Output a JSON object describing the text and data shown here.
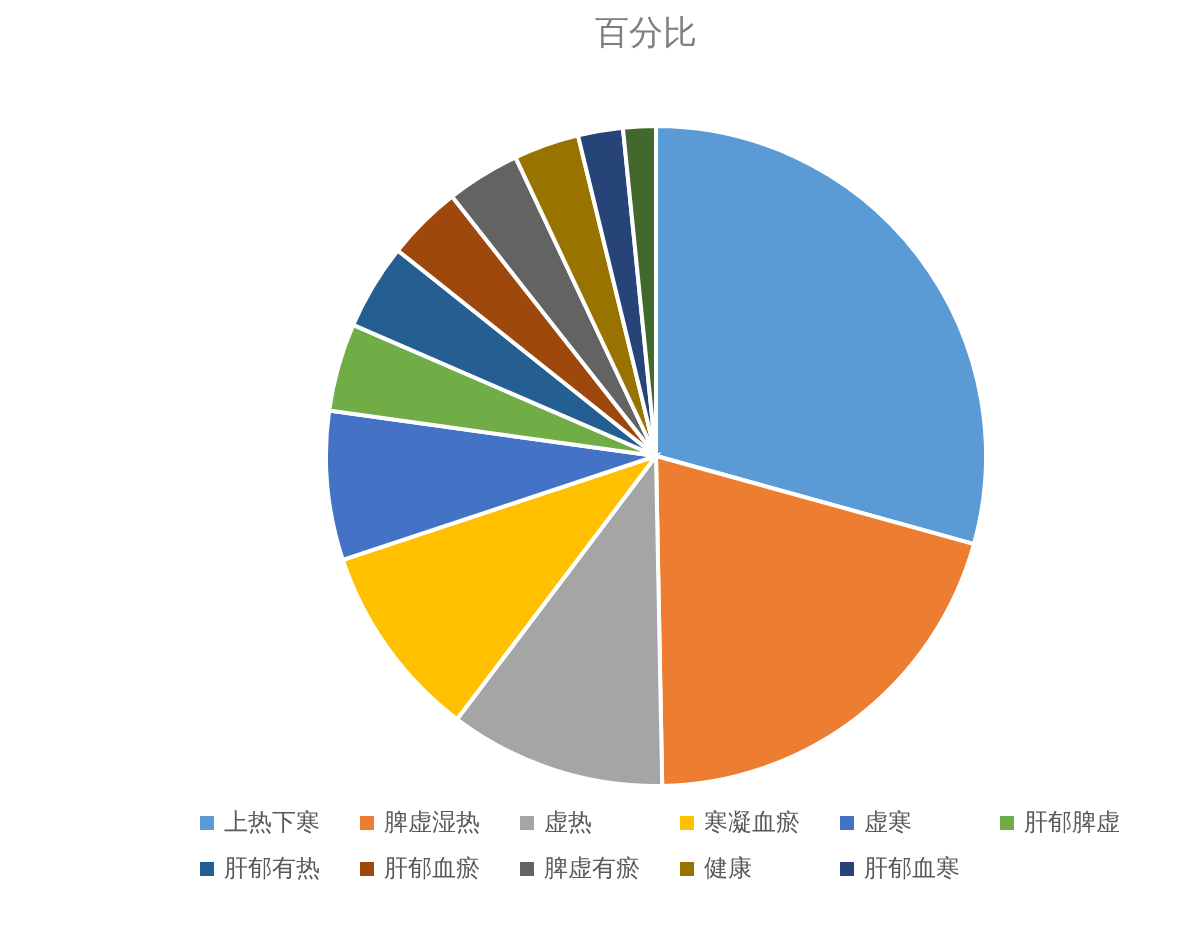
{
  "chart_data": {
    "type": "pie",
    "title": "百分比",
    "categories": [
      "上热下寒",
      "脾虚湿热",
      "虚热",
      "寒凝血瘀",
      "虚寒",
      "肝郁脾虚",
      "肝郁有热",
      "肝郁血瘀",
      "脾虚有瘀",
      "健康",
      "肝郁血寒",
      null
    ],
    "values": [
      29.3,
      20.4,
      10.6,
      9.6,
      7.3,
      4.3,
      4.2,
      3.7,
      3.6,
      3.2,
      2.2,
      1.6
    ],
    "colors": [
      "#5b9bd5",
      "#ed7d31",
      "#a5a5a5",
      "#ffc000",
      "#4472c4",
      "#70ad47",
      "#255e91",
      "#9e480e",
      "#636363",
      "#997300",
      "#264478",
      "#43682b"
    ],
    "legend": "bottom"
  }
}
